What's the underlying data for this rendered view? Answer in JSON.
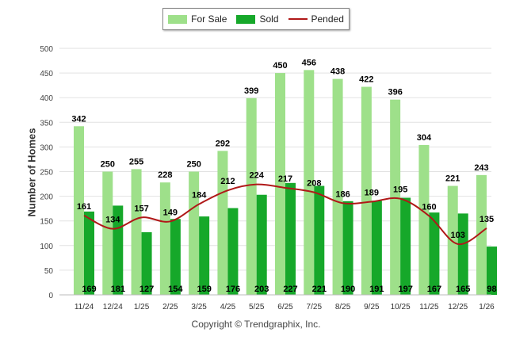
{
  "legend": {
    "for_sale": "For Sale",
    "sold": "Sold",
    "pended": "Pended"
  },
  "credit": "Copyright © Trendgraphix, Inc.",
  "colors": {
    "for_sale": "#9ee08a",
    "sold": "#16a82a",
    "pended": "#b01818",
    "grid": "#e2e2e2"
  },
  "chart_data": {
    "type": "bar",
    "title": "",
    "xlabel": "",
    "ylabel": "Number of Homes",
    "ylim": [
      0,
      500
    ],
    "yticks": [
      0,
      50,
      100,
      150,
      200,
      250,
      300,
      350,
      400,
      450,
      500
    ],
    "categories": [
      "11/24",
      "12/24",
      "1/25",
      "2/25",
      "3/25",
      "4/25",
      "5/25",
      "6/25",
      "7/25",
      "8/25",
      "9/25",
      "10/25",
      "11/25",
      "12/25",
      "1/26"
    ],
    "series": [
      {
        "name": "For Sale",
        "type": "bar",
        "values": [
          342,
          250,
          255,
          228,
          250,
          292,
          399,
          450,
          456,
          438,
          422,
          396,
          304,
          221,
          243
        ]
      },
      {
        "name": "Sold",
        "type": "bar",
        "values": [
          169,
          181,
          127,
          154,
          159,
          176,
          203,
          227,
          221,
          190,
          191,
          197,
          167,
          165,
          98
        ]
      },
      {
        "name": "Pended",
        "type": "line",
        "values": [
          161,
          134,
          157,
          149,
          184,
          212,
          224,
          217,
          208,
          186,
          189,
          195,
          160,
          103,
          135
        ]
      }
    ],
    "grid": true,
    "legend_position": "top-center"
  }
}
